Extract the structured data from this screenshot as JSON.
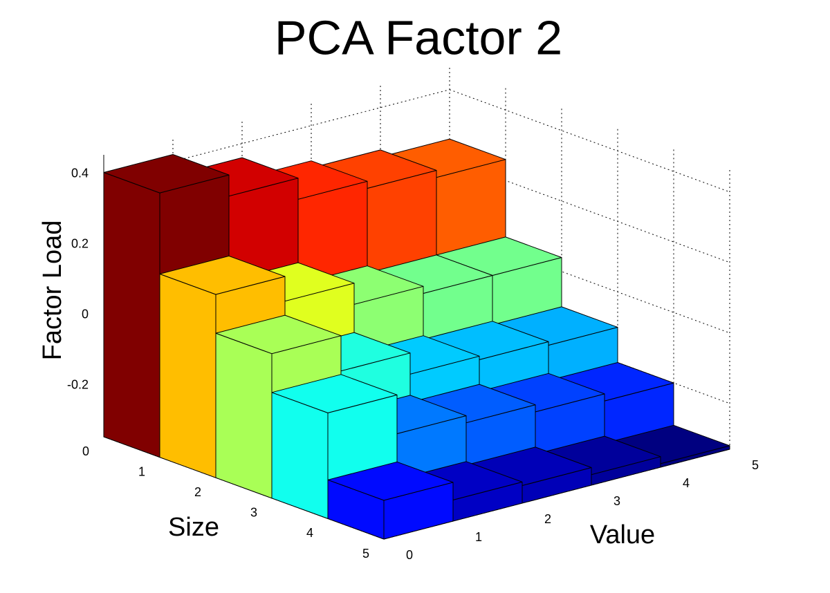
{
  "chart_data": {
    "type": "bar3",
    "title": "PCA Factor 2",
    "xlabel": "Value",
    "ylabel": "Size",
    "zlabel": "Factor Load",
    "x": [
      1,
      2,
      3,
      4,
      5
    ],
    "y": [
      1,
      2,
      3,
      4,
      5
    ],
    "z": [
      [
        0.42,
        0.36,
        0.3,
        0.28,
        0.26
      ],
      [
        0.19,
        0.12,
        0.06,
        0.04,
        0.04
      ],
      [
        0.08,
        -0.02,
        -0.08,
        -0.09,
        -0.1
      ],
      [
        -0.03,
        -0.14,
        -0.16,
        -0.18,
        -0.2
      ],
      [
        -0.22,
        -0.27,
        -0.28,
        -0.3,
        -0.32
      ]
    ],
    "xlim": [
      0,
      5
    ],
    "xticks": [
      0,
      1,
      2,
      3,
      4,
      5
    ],
    "ylim": [
      0,
      5
    ],
    "yticks": [
      0,
      1,
      2,
      3,
      4,
      5
    ],
    "zlim": [
      -0.33,
      0.47
    ],
    "zticks": [
      -0.2,
      0,
      0.2,
      0.4
    ],
    "grid": true,
    "colormap": "jet"
  }
}
